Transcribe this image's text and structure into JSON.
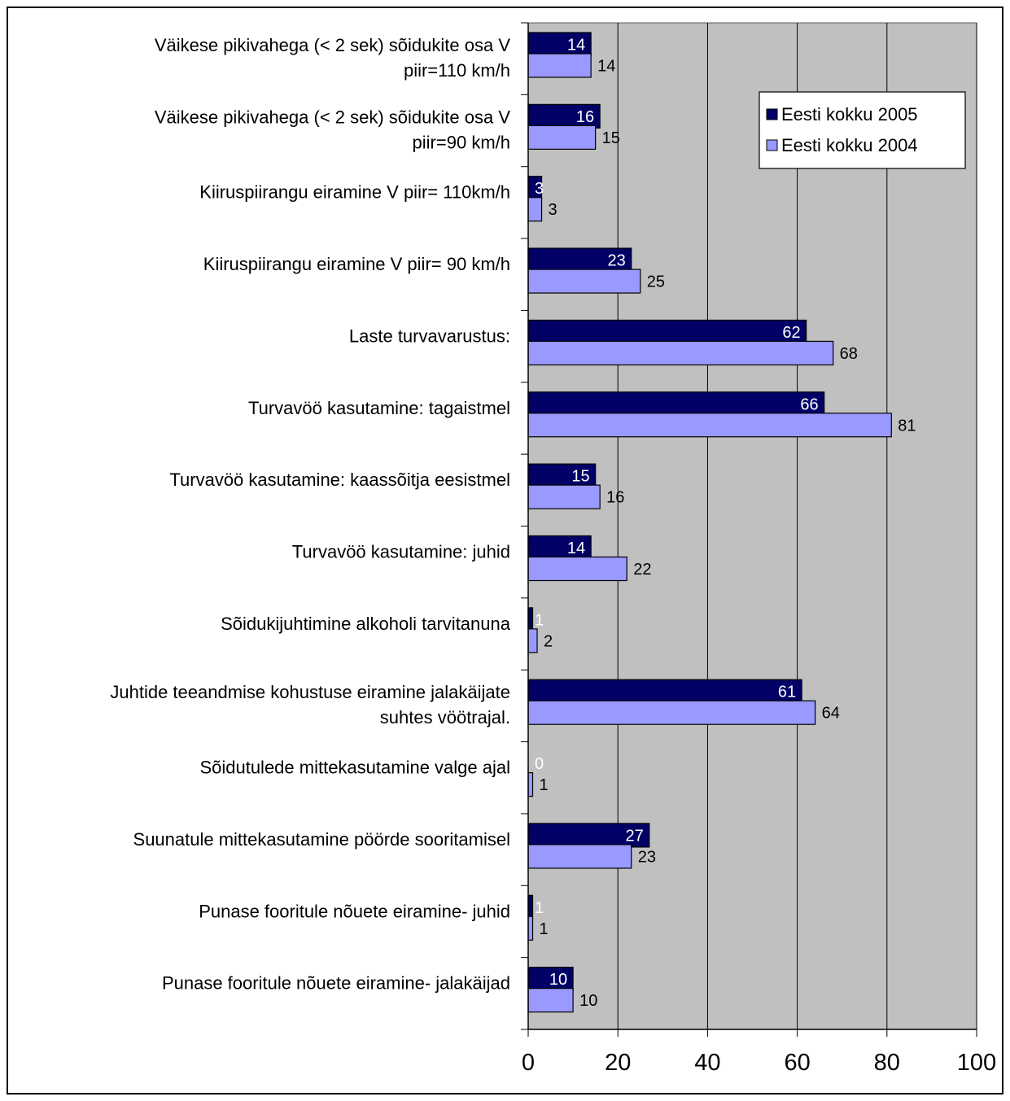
{
  "chart_data": {
    "type": "bar",
    "orientation": "horizontal",
    "title": "",
    "xlabel": "",
    "ylabel": "",
    "xlim": [
      0,
      100
    ],
    "x_ticks": [
      0,
      20,
      40,
      60,
      80,
      100
    ],
    "grid": "vertical lines",
    "legend_position": "top-right",
    "categories": [
      [
        "Väikese pikivahega (< 2 sek) sõidukite osa V",
        "piir=110 km/h"
      ],
      [
        "Väikese pikivahega (< 2 sek) sõidukite osa V",
        "piir=90 km/h"
      ],
      [
        "Kiiruspiirangu eiramine V piir= 110km/h"
      ],
      [
        "Kiiruspiirangu eiramine V piir= 90 km/h"
      ],
      [
        "Laste turvavarustus: "
      ],
      [
        "Turvavöö kasutamine: tagaistmel"
      ],
      [
        "Turvavöö kasutamine: kaassõitja eesistmel"
      ],
      [
        "Turvavöö kasutamine: juhid "
      ],
      [
        "Sõidukijuhtimine alkoholi tarvitanuna"
      ],
      [
        "Juhtide teeandmise kohustuse eiramine jalakäijate",
        "suhtes vöötrajal."
      ],
      [
        "Sõidutulede mittekasutamine valge ajal"
      ],
      [
        "Suunatule mittekasutamine pöörde sooritamisel"
      ],
      [
        "Punase fooritule nõuete eiramine- juhid"
      ],
      [
        "Punase fooritule nõuete eiramine- jalakäijad"
      ]
    ],
    "series": [
      {
        "name": "Eesti kokku 2005",
        "color": "#000066",
        "label_color": "#ffffff",
        "values": [
          14,
          16,
          3,
          23,
          62,
          66,
          15,
          14,
          1,
          61,
          0,
          27,
          1,
          10
        ]
      },
      {
        "name": "Eesti kokku 2004",
        "color": "#9999ff",
        "label_color": "#000000",
        "values": [
          14,
          15,
          3,
          25,
          68,
          81,
          16,
          22,
          2,
          64,
          1,
          23,
          1,
          10
        ]
      }
    ]
  },
  "colors": {
    "plot_background": "#c0c0c0",
    "gridline": "#000000",
    "bar_outline": "#000000"
  }
}
